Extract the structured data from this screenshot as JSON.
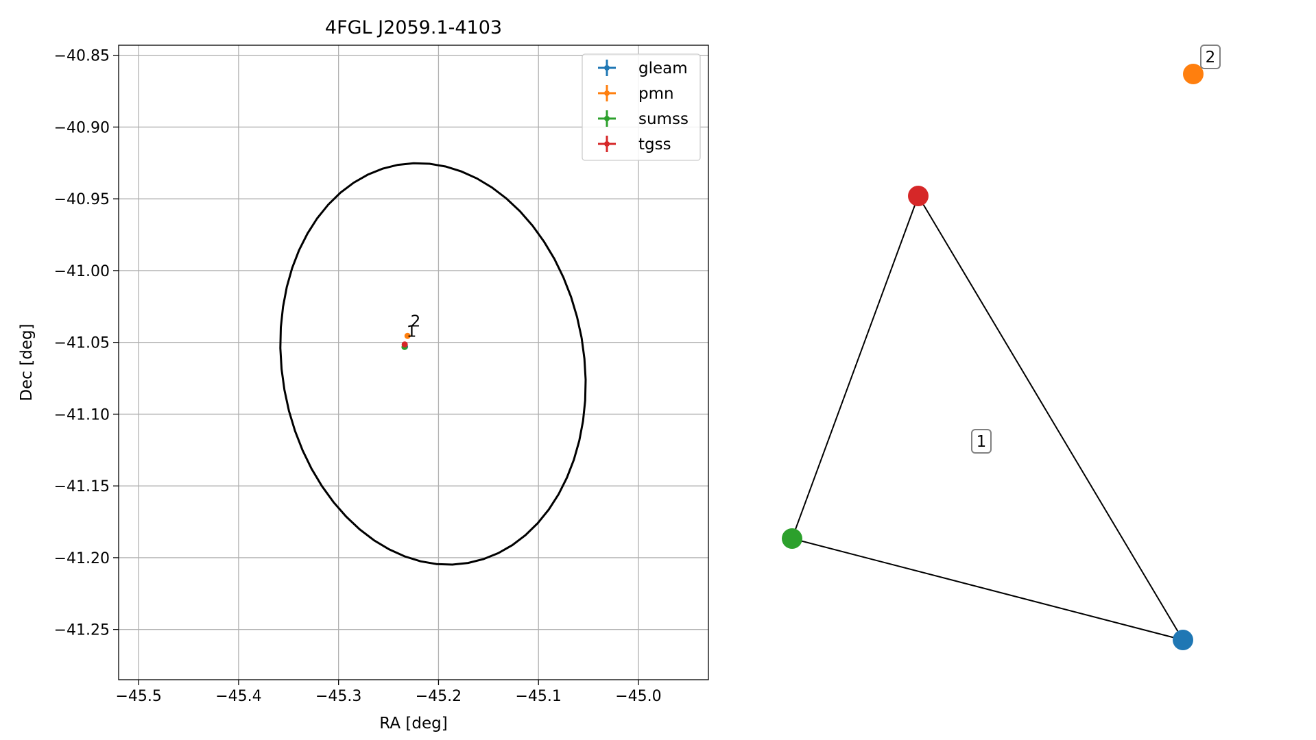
{
  "chart_data": [
    {
      "type": "scatter",
      "title": "4FGL J2059.1-4103",
      "xlabel": "RA [deg]",
      "ylabel": "Dec [deg]",
      "xlim": [
        -45.52,
        -44.93
      ],
      "ylim": [
        -41.285,
        -40.843
      ],
      "xticks": [
        -45.5,
        -45.4,
        -45.3,
        -45.2,
        -45.1,
        -45.0
      ],
      "xtick_labels": [
        "−45.5",
        "−45.4",
        "−45.3",
        "−45.2",
        "−45.1",
        "−45.0"
      ],
      "yticks": [
        -40.85,
        -40.9,
        -40.95,
        -41.0,
        -41.05,
        -41.1,
        -41.15,
        -41.2,
        -41.25
      ],
      "ytick_labels": [
        "−40.85",
        "−40.90",
        "−40.95",
        "−41.00",
        "−41.05",
        "−41.10",
        "−41.15",
        "−41.20",
        "−41.25"
      ],
      "grid": true,
      "legend_position": "top-right",
      "series": [
        {
          "name": "gleam",
          "color": "#1f77b4",
          "x": -45.2335,
          "y": -41.053
        },
        {
          "name": "pmn",
          "color": "#ff7f0e",
          "x": -45.231,
          "y": -41.0455
        },
        {
          "name": "sumss",
          "color": "#2ca02c",
          "x": -45.234,
          "y": -41.0532
        },
        {
          "name": "tgss",
          "color": "#d62728",
          "x": -45.2338,
          "y": -41.0515
        }
      ],
      "ellipse": {
        "center_ra": -45.2055,
        "center_dec": -41.065,
        "stroke": "#000000"
      },
      "annotations": [
        {
          "text": "2",
          "x": -45.228,
          "y": -41.039
        },
        {
          "text": "1",
          "x": -45.232,
          "y": -41.046
        }
      ]
    },
    {
      "type": "network",
      "nodes": [
        {
          "id": "tgss",
          "color": "#d62728"
        },
        {
          "id": "sumss",
          "color": "#2ca02c"
        },
        {
          "id": "gleam",
          "color": "#1f77b4"
        },
        {
          "id": "pmn",
          "color": "#ff7f0e"
        }
      ],
      "edges": [
        [
          "tgss",
          "sumss"
        ],
        [
          "sumss",
          "gleam"
        ],
        [
          "gleam",
          "tgss"
        ]
      ],
      "labels": [
        {
          "text": "1",
          "group": "triangle"
        },
        {
          "text": "2",
          "node": "pmn"
        }
      ]
    }
  ]
}
